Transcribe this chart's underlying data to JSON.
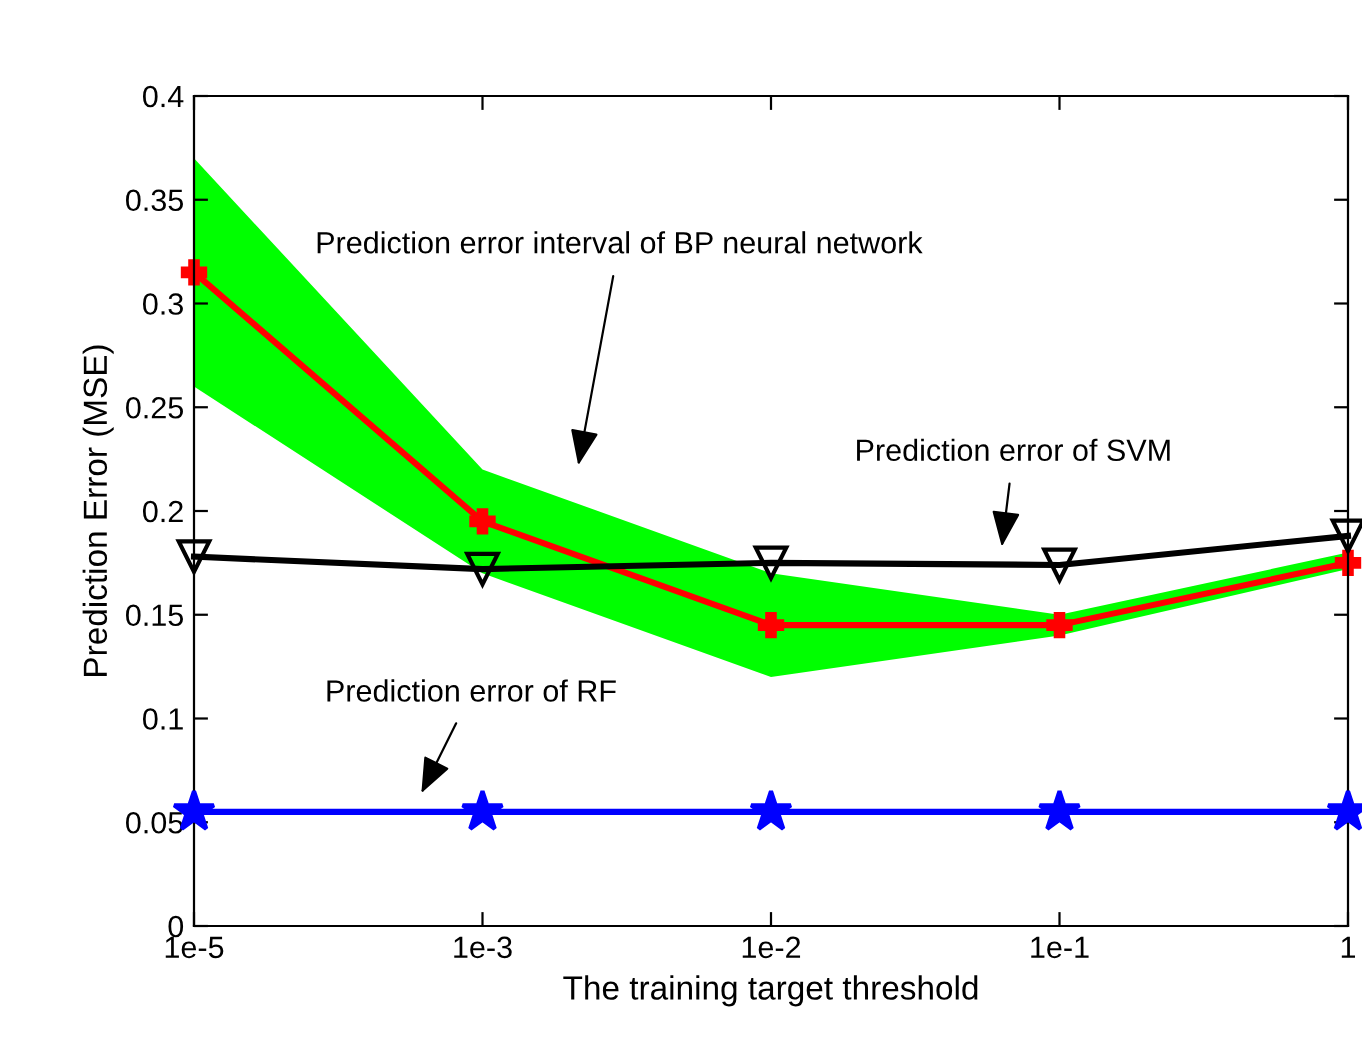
{
  "chart_data": {
    "type": "line",
    "xlabel": "The training target threshold",
    "ylabel": "Prediction Error (MSE)",
    "categories": [
      "1e-5",
      "1e-3",
      "1e-2",
      "1e-1",
      "1"
    ],
    "ylim": [
      0,
      0.4
    ],
    "yticks": [
      0,
      0.05,
      0.1,
      0.15,
      0.2,
      0.25,
      0.3,
      0.35,
      0.4
    ],
    "grid": false,
    "legend": false,
    "series": [
      {
        "color": "#ff0000",
        "marker": "cross",
        "values": [
          0.315,
          0.195,
          0.145,
          0.145,
          0.175
        ],
        "lower": [
          0.26,
          0.17,
          0.12,
          0.14,
          0.172
        ],
        "upper": [
          0.37,
          0.22,
          0.17,
          0.15,
          0.18
        ]
      },
      {
        "color": "#000000",
        "marker": "triangle",
        "values": [
          0.178,
          0.172,
          0.175,
          0.174,
          0.188
        ]
      },
      {
        "color": "#0000ff",
        "marker": "star",
        "values": [
          0.055,
          0.055,
          0.055,
          0.055,
          0.055
        ]
      }
    ],
    "annotations": [
      "Prediction error interval of BP neural network",
      "Prediction error of SVM",
      "Prediction error of RF"
    ]
  }
}
